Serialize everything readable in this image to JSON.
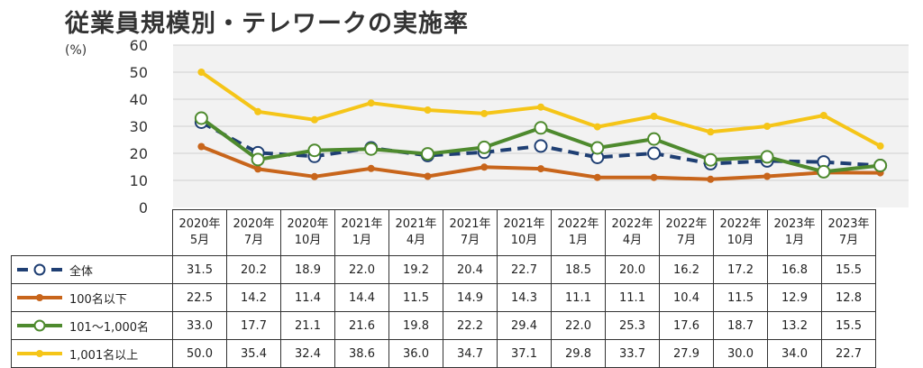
{
  "chart_data": {
    "type": "line",
    "title": "従業員規模別・テレワークの実施率",
    "ylabel": "(%)",
    "ylim": [
      0,
      60
    ],
    "yticks": [
      0,
      10,
      20,
      30,
      40,
      50,
      60
    ],
    "grid": true,
    "categories": [
      {
        "year": "2020年",
        "month": "5月"
      },
      {
        "year": "2020年",
        "month": "7月"
      },
      {
        "year": "2020年",
        "month": "10月"
      },
      {
        "year": "2021年",
        "month": "1月"
      },
      {
        "year": "2021年",
        "month": "4月"
      },
      {
        "year": "2021年",
        "month": "7月"
      },
      {
        "year": "2021年",
        "month": "10月"
      },
      {
        "year": "2022年",
        "month": "1月"
      },
      {
        "year": "2022年",
        "month": "4月"
      },
      {
        "year": "2022年",
        "month": "7月"
      },
      {
        "year": "2022年",
        "month": "10月"
      },
      {
        "year": "2023年",
        "month": "1月"
      },
      {
        "year": "2023年",
        "month": "7月"
      }
    ],
    "series": [
      {
        "name": "全体",
        "color": "#1f3f73",
        "dashed": true,
        "marker": "open-circle",
        "values": [
          "31.5",
          "20.2",
          "18.9",
          "22.0",
          "19.2",
          "20.4",
          "22.7",
          "18.5",
          "20.0",
          "16.2",
          "17.2",
          "16.8",
          "15.5"
        ]
      },
      {
        "name": "100名以下",
        "color": "#c8651b",
        "dashed": false,
        "marker": "dot",
        "values": [
          "22.5",
          "14.2",
          "11.4",
          "14.4",
          "11.5",
          "14.9",
          "14.3",
          "11.1",
          "11.1",
          "10.4",
          "11.5",
          "12.9",
          "12.8"
        ]
      },
      {
        "name": "101～1,000名",
        "color": "#4e8a2e",
        "dashed": false,
        "marker": "open-circle",
        "values": [
          "33.0",
          "17.7",
          "21.1",
          "21.6",
          "19.8",
          "22.2",
          "29.4",
          "22.0",
          "25.3",
          "17.6",
          "18.7",
          "13.2",
          "15.5"
        ]
      },
      {
        "name": "1,001名以上",
        "color": "#f5c518",
        "dashed": false,
        "marker": "dot",
        "values": [
          "50.0",
          "35.4",
          "32.4",
          "38.6",
          "36.0",
          "34.7",
          "37.1",
          "29.8",
          "33.7",
          "27.9",
          "30.0",
          "34.0",
          "22.7"
        ]
      }
    ]
  }
}
